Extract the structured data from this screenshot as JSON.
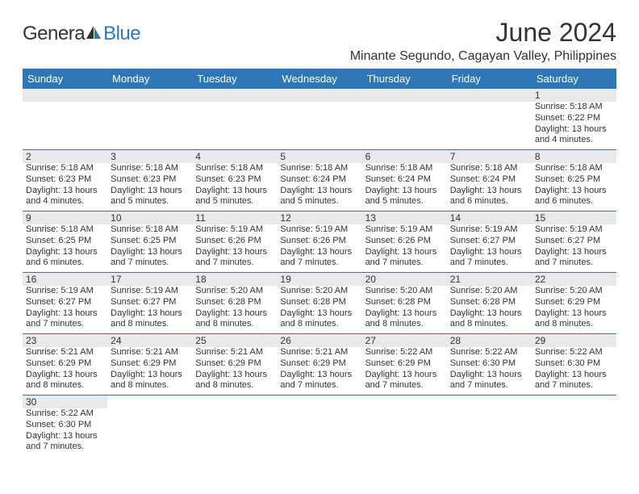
{
  "logo": {
    "part1": "Genera",
    "part2": "Blue"
  },
  "title": "June 2024",
  "location": "Minante Segundo, Cagayan Valley, Philippines",
  "colors": {
    "header_bg": "#2f78b7",
    "header_text": "#ffffff",
    "daynum_bg": "#e9e9e9",
    "text": "#333333",
    "rule": "#2f78b7",
    "logo_accent": "#2f78b7"
  },
  "typography": {
    "title_fontsize": 32,
    "location_fontsize": 16,
    "dayhead_fontsize": 13,
    "body_fontsize": 11
  },
  "day_names": [
    "Sunday",
    "Monday",
    "Tuesday",
    "Wednesday",
    "Thursday",
    "Friday",
    "Saturday"
  ],
  "weeks": [
    [
      null,
      null,
      null,
      null,
      null,
      null,
      {
        "n": "1",
        "sunrise": "Sunrise: 5:18 AM",
        "sunset": "Sunset: 6:22 PM",
        "d1": "Daylight: 13 hours",
        "d2": "and 4 minutes."
      }
    ],
    [
      {
        "n": "2",
        "sunrise": "Sunrise: 5:18 AM",
        "sunset": "Sunset: 6:23 PM",
        "d1": "Daylight: 13 hours",
        "d2": "and 4 minutes."
      },
      {
        "n": "3",
        "sunrise": "Sunrise: 5:18 AM",
        "sunset": "Sunset: 6:23 PM",
        "d1": "Daylight: 13 hours",
        "d2": "and 5 minutes."
      },
      {
        "n": "4",
        "sunrise": "Sunrise: 5:18 AM",
        "sunset": "Sunset: 6:23 PM",
        "d1": "Daylight: 13 hours",
        "d2": "and 5 minutes."
      },
      {
        "n": "5",
        "sunrise": "Sunrise: 5:18 AM",
        "sunset": "Sunset: 6:24 PM",
        "d1": "Daylight: 13 hours",
        "d2": "and 5 minutes."
      },
      {
        "n": "6",
        "sunrise": "Sunrise: 5:18 AM",
        "sunset": "Sunset: 6:24 PM",
        "d1": "Daylight: 13 hours",
        "d2": "and 5 minutes."
      },
      {
        "n": "7",
        "sunrise": "Sunrise: 5:18 AM",
        "sunset": "Sunset: 6:24 PM",
        "d1": "Daylight: 13 hours",
        "d2": "and 6 minutes."
      },
      {
        "n": "8",
        "sunrise": "Sunrise: 5:18 AM",
        "sunset": "Sunset: 6:25 PM",
        "d1": "Daylight: 13 hours",
        "d2": "and 6 minutes."
      }
    ],
    [
      {
        "n": "9",
        "sunrise": "Sunrise: 5:18 AM",
        "sunset": "Sunset: 6:25 PM",
        "d1": "Daylight: 13 hours",
        "d2": "and 6 minutes."
      },
      {
        "n": "10",
        "sunrise": "Sunrise: 5:18 AM",
        "sunset": "Sunset: 6:25 PM",
        "d1": "Daylight: 13 hours",
        "d2": "and 7 minutes."
      },
      {
        "n": "11",
        "sunrise": "Sunrise: 5:19 AM",
        "sunset": "Sunset: 6:26 PM",
        "d1": "Daylight: 13 hours",
        "d2": "and 7 minutes."
      },
      {
        "n": "12",
        "sunrise": "Sunrise: 5:19 AM",
        "sunset": "Sunset: 6:26 PM",
        "d1": "Daylight: 13 hours",
        "d2": "and 7 minutes."
      },
      {
        "n": "13",
        "sunrise": "Sunrise: 5:19 AM",
        "sunset": "Sunset: 6:26 PM",
        "d1": "Daylight: 13 hours",
        "d2": "and 7 minutes."
      },
      {
        "n": "14",
        "sunrise": "Sunrise: 5:19 AM",
        "sunset": "Sunset: 6:27 PM",
        "d1": "Daylight: 13 hours",
        "d2": "and 7 minutes."
      },
      {
        "n": "15",
        "sunrise": "Sunrise: 5:19 AM",
        "sunset": "Sunset: 6:27 PM",
        "d1": "Daylight: 13 hours",
        "d2": "and 7 minutes."
      }
    ],
    [
      {
        "n": "16",
        "sunrise": "Sunrise: 5:19 AM",
        "sunset": "Sunset: 6:27 PM",
        "d1": "Daylight: 13 hours",
        "d2": "and 7 minutes."
      },
      {
        "n": "17",
        "sunrise": "Sunrise: 5:19 AM",
        "sunset": "Sunset: 6:27 PM",
        "d1": "Daylight: 13 hours",
        "d2": "and 8 minutes."
      },
      {
        "n": "18",
        "sunrise": "Sunrise: 5:20 AM",
        "sunset": "Sunset: 6:28 PM",
        "d1": "Daylight: 13 hours",
        "d2": "and 8 minutes."
      },
      {
        "n": "19",
        "sunrise": "Sunrise: 5:20 AM",
        "sunset": "Sunset: 6:28 PM",
        "d1": "Daylight: 13 hours",
        "d2": "and 8 minutes."
      },
      {
        "n": "20",
        "sunrise": "Sunrise: 5:20 AM",
        "sunset": "Sunset: 6:28 PM",
        "d1": "Daylight: 13 hours",
        "d2": "and 8 minutes."
      },
      {
        "n": "21",
        "sunrise": "Sunrise: 5:20 AM",
        "sunset": "Sunset: 6:28 PM",
        "d1": "Daylight: 13 hours",
        "d2": "and 8 minutes."
      },
      {
        "n": "22",
        "sunrise": "Sunrise: 5:20 AM",
        "sunset": "Sunset: 6:29 PM",
        "d1": "Daylight: 13 hours",
        "d2": "and 8 minutes."
      }
    ],
    [
      {
        "n": "23",
        "sunrise": "Sunrise: 5:21 AM",
        "sunset": "Sunset: 6:29 PM",
        "d1": "Daylight: 13 hours",
        "d2": "and 8 minutes."
      },
      {
        "n": "24",
        "sunrise": "Sunrise: 5:21 AM",
        "sunset": "Sunset: 6:29 PM",
        "d1": "Daylight: 13 hours",
        "d2": "and 8 minutes."
      },
      {
        "n": "25",
        "sunrise": "Sunrise: 5:21 AM",
        "sunset": "Sunset: 6:29 PM",
        "d1": "Daylight: 13 hours",
        "d2": "and 8 minutes."
      },
      {
        "n": "26",
        "sunrise": "Sunrise: 5:21 AM",
        "sunset": "Sunset: 6:29 PM",
        "d1": "Daylight: 13 hours",
        "d2": "and 7 minutes."
      },
      {
        "n": "27",
        "sunrise": "Sunrise: 5:22 AM",
        "sunset": "Sunset: 6:29 PM",
        "d1": "Daylight: 13 hours",
        "d2": "and 7 minutes."
      },
      {
        "n": "28",
        "sunrise": "Sunrise: 5:22 AM",
        "sunset": "Sunset: 6:30 PM",
        "d1": "Daylight: 13 hours",
        "d2": "and 7 minutes."
      },
      {
        "n": "29",
        "sunrise": "Sunrise: 5:22 AM",
        "sunset": "Sunset: 6:30 PM",
        "d1": "Daylight: 13 hours",
        "d2": "and 7 minutes."
      }
    ],
    [
      {
        "n": "30",
        "sunrise": "Sunrise: 5:22 AM",
        "sunset": "Sunset: 6:30 PM",
        "d1": "Daylight: 13 hours",
        "d2": "and 7 minutes."
      },
      null,
      null,
      null,
      null,
      null,
      null
    ]
  ]
}
